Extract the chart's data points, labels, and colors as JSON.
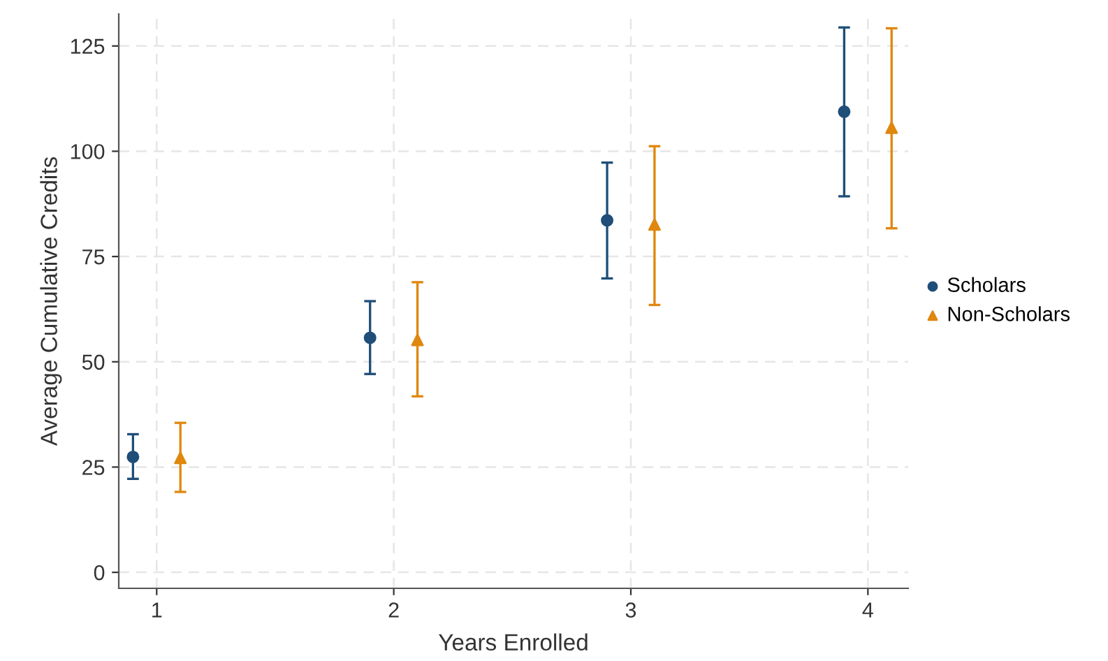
{
  "chart_data": {
    "type": "scatter",
    "xlabel": "Years Enrolled",
    "ylabel": "Average Cumulative Credits",
    "xlim": [
      0.84,
      4.17
    ],
    "xticks": [
      1,
      2,
      3,
      4
    ],
    "ylim": [
      -3.8,
      132.6
    ],
    "yticks": [
      0,
      25,
      50,
      75,
      100,
      125
    ],
    "grid": true,
    "legend": "right",
    "series": [
      {
        "name": "Scholars",
        "color": "#1f4e79",
        "marker": "circle",
        "x": [
          0.9,
          1.9,
          2.9,
          3.9
        ],
        "values": [
          27.4,
          55.7,
          83.6,
          109.4
        ],
        "errors": [
          [
            22.2,
            32.8
          ],
          [
            47.1,
            64.4
          ],
          [
            69.8,
            97.3
          ],
          [
            89.3,
            129.4
          ]
        ]
      },
      {
        "name": "Non-Scholars",
        "color": "#e0870f",
        "marker": "triangle",
        "x": [
          1.1,
          2.1,
          3.1,
          4.1
        ],
        "values": [
          27.2,
          55.2,
          82.6,
          105.6
        ],
        "errors": [
          [
            19.1,
            35.5
          ],
          [
            41.8,
            68.9
          ],
          [
            63.5,
            101.2
          ],
          [
            81.7,
            129.2
          ]
        ]
      }
    ]
  }
}
